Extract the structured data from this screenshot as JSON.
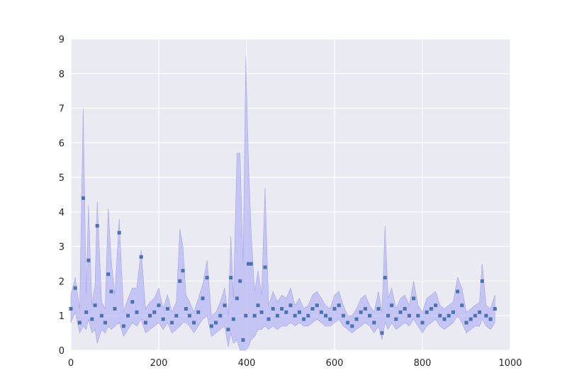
{
  "chart_data": {
    "type": "scatter",
    "title": "",
    "xlabel": "",
    "ylabel": "",
    "xlim": [
      0,
      1000
    ],
    "ylim": [
      0,
      9
    ],
    "x_ticks": [
      "0",
      "200",
      "400",
      "600",
      "800",
      "1000"
    ],
    "y_ticks": [
      "0",
      "1",
      "2",
      "3",
      "4",
      "5",
      "6",
      "7",
      "8",
      "9"
    ],
    "grid": true,
    "legend": "none",
    "colors": {
      "background": "#eaeaf2",
      "grid": "#ffffff",
      "marker": "#4c72b0",
      "band_fill": "#b8b8f5"
    },
    "series": [
      {
        "marker": "square",
        "x": [
          0,
          10,
          20,
          28,
          35,
          40,
          48,
          55,
          60,
          70,
          78,
          85,
          92,
          100,
          110,
          120,
          130,
          140,
          150,
          160,
          170,
          180,
          190,
          200,
          210,
          220,
          230,
          240,
          248,
          255,
          262,
          270,
          280,
          290,
          300,
          310,
          320,
          330,
          340,
          350,
          358,
          364,
          370,
          378,
          385,
          392,
          398,
          404,
          410,
          418,
          426,
          434,
          442,
          450,
          460,
          470,
          480,
          490,
          500,
          510,
          520,
          530,
          540,
          550,
          560,
          570,
          580,
          590,
          600,
          610,
          620,
          630,
          640,
          650,
          660,
          670,
          680,
          690,
          700,
          708,
          715,
          722,
          730,
          740,
          750,
          760,
          770,
          780,
          790,
          800,
          810,
          820,
          830,
          840,
          850,
          860,
          870,
          880,
          890,
          900,
          910,
          920,
          930,
          936,
          945,
          955,
          965
        ],
        "y": [
          1.2,
          1.8,
          0.8,
          4.4,
          1.1,
          2.6,
          0.9,
          1.3,
          3.6,
          1.0,
          0.8,
          2.2,
          1.7,
          1.2,
          3.4,
          0.7,
          1.0,
          1.4,
          1.1,
          2.7,
          0.8,
          1.0,
          1.1,
          1.3,
          0.9,
          1.2,
          0.8,
          1.0,
          2.0,
          2.3,
          1.2,
          1.0,
          0.8,
          1.1,
          1.5,
          2.1,
          0.7,
          0.8,
          1.0,
          1.3,
          0.6,
          2.1,
          0.9,
          1.5,
          2.0,
          0.3,
          1.0,
          2.5,
          2.5,
          1.0,
          1.3,
          1.1,
          2.4,
          0.9,
          1.2,
          1.0,
          1.2,
          1.1,
          1.3,
          1.0,
          1.1,
          0.9,
          1.0,
          1.2,
          1.3,
          1.1,
          1.0,
          0.9,
          1.2,
          1.3,
          1.0,
          0.8,
          0.7,
          0.9,
          1.1,
          1.2,
          1.0,
          0.8,
          1.2,
          0.5,
          2.1,
          1.0,
          1.3,
          0.9,
          1.1,
          1.2,
          1.0,
          1.5,
          1.0,
          0.8,
          1.1,
          1.2,
          1.3,
          1.0,
          0.9,
          1.0,
          1.1,
          1.7,
          1.3,
          0.8,
          0.9,
          1.0,
          1.1,
          2.0,
          1.0,
          0.9,
          1.2
        ],
        "band_low": [
          0.8,
          1.1,
          0.5,
          0.7,
          0.6,
          0.9,
          0.5,
          0.6,
          0.2,
          0.6,
          0.5,
          0.7,
          0.6,
          0.7,
          0.8,
          0.4,
          0.6,
          0.8,
          0.7,
          0.9,
          0.5,
          0.6,
          0.7,
          0.8,
          0.6,
          0.8,
          0.5,
          0.6,
          0.7,
          0.8,
          0.8,
          0.7,
          0.5,
          0.7,
          0.9,
          1.0,
          0.4,
          0.5,
          0.6,
          0.7,
          0.1,
          0.5,
          0.2,
          0.3,
          0.0,
          0.0,
          0.0,
          0.1,
          0.3,
          0.4,
          0.6,
          0.6,
          0.7,
          0.6,
          0.7,
          0.6,
          0.7,
          0.7,
          0.8,
          0.7,
          0.8,
          0.7,
          0.7,
          0.8,
          0.9,
          0.8,
          0.7,
          0.7,
          0.8,
          0.9,
          0.7,
          0.6,
          0.5,
          0.6,
          0.7,
          0.8,
          0.7,
          0.5,
          0.7,
          0.3,
          0.8,
          0.6,
          0.8,
          0.6,
          0.7,
          0.8,
          0.7,
          0.9,
          0.7,
          0.5,
          0.7,
          0.8,
          0.9,
          0.7,
          0.6,
          0.7,
          0.8,
          1.0,
          0.8,
          0.5,
          0.6,
          0.7,
          0.7,
          0.9,
          0.7,
          0.6,
          0.8
        ],
        "band_high": [
          1.6,
          2.1,
          1.2,
          7.0,
          1.6,
          4.2,
          1.3,
          1.9,
          4.3,
          1.4,
          1.2,
          4.1,
          2.6,
          1.6,
          3.8,
          1.1,
          1.5,
          1.8,
          1.8,
          2.9,
          1.2,
          1.4,
          1.5,
          1.8,
          1.2,
          1.6,
          1.1,
          1.4,
          3.5,
          3.0,
          1.6,
          1.4,
          1.1,
          1.5,
          1.9,
          2.6,
          1.0,
          1.1,
          1.4,
          1.8,
          1.0,
          3.3,
          1.5,
          5.7,
          5.7,
          2.5,
          8.5,
          5.5,
          3.5,
          1.7,
          2.3,
          1.6,
          4.7,
          1.3,
          1.7,
          1.4,
          1.6,
          1.5,
          1.8,
          1.3,
          1.5,
          1.2,
          1.3,
          1.6,
          1.7,
          1.5,
          1.3,
          1.2,
          1.6,
          1.7,
          1.3,
          1.0,
          1.0,
          1.2,
          1.5,
          1.6,
          1.3,
          1.1,
          1.7,
          1.1,
          3.6,
          1.5,
          1.8,
          1.2,
          1.5,
          1.6,
          1.3,
          2.0,
          1.3,
          1.1,
          1.5,
          1.6,
          1.7,
          1.3,
          1.2,
          1.3,
          1.4,
          2.1,
          1.8,
          1.1,
          1.2,
          1.3,
          1.4,
          2.5,
          1.3,
          1.2,
          1.6
        ]
      }
    ]
  }
}
